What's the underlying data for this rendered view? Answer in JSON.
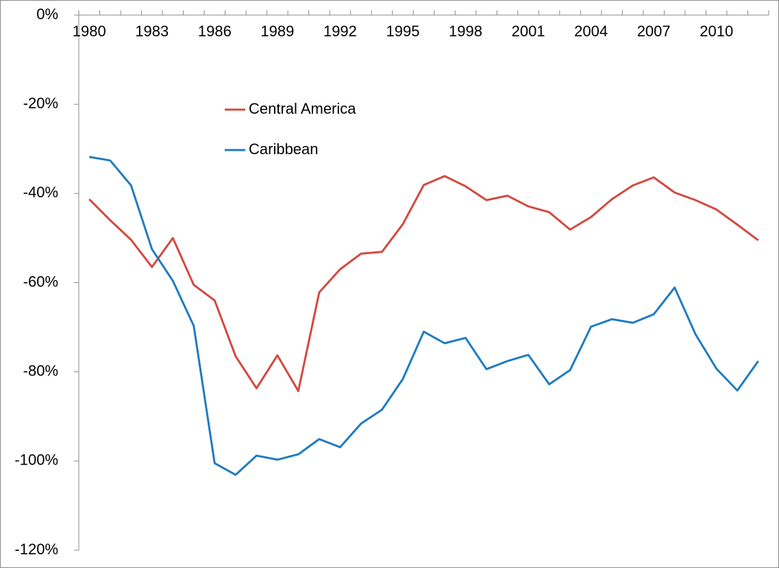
{
  "chart_data": {
    "type": "line",
    "categories": [
      1980,
      null,
      null,
      1983,
      null,
      null,
      1986,
      null,
      null,
      1989,
      null,
      null,
      1992,
      null,
      null,
      1995,
      null,
      null,
      1998,
      null,
      null,
      2001,
      null,
      null,
      2004,
      null,
      null,
      2007,
      null,
      null,
      2010,
      null,
      null
    ],
    "series": [
      {
        "name": "Central America",
        "color": "#d4483f",
        "values": [
          -41.3,
          -46,
          -50.4,
          -56.5,
          -50,
          -60.5,
          -64,
          -76.5,
          -83.7,
          -76.3,
          -84.3,
          -62.2,
          -57,
          -53.5,
          -53.1,
          -46.9,
          -38.1,
          -36.1,
          -38.4,
          -41.5,
          -40.5,
          -42.9,
          -44.2,
          -48.1,
          -45.3,
          -41.3,
          -38.2,
          -36.4,
          -39.8,
          -41.5,
          -43.6,
          -47,
          -50.5
        ]
      },
      {
        "name": "Caribbean",
        "color": "#1f7bc1",
        "values": [
          -31.8,
          -32.6,
          -38.2,
          -52.5,
          -59.6,
          -69.7,
          -100.5,
          -103.1,
          -98.8,
          -99.7,
          -98.5,
          -95.1,
          -96.9,
          -91.6,
          -88.5,
          -81.6,
          -71,
          -73.6,
          -72.4,
          -79.4,
          -77.6,
          -76.2,
          -82.8,
          -79.6,
          -69.9,
          -68.2,
          -69,
          -67.1,
          -61.1,
          -71.6,
          -79.3,
          -84.2,
          -77.6
        ]
      }
    ],
    "ylim": [
      -120,
      0
    ],
    "yticks": [
      {
        "value": 0,
        "label": "0%"
      },
      {
        "value": -20,
        "label": "-20%"
      },
      {
        "value": -40,
        "label": "-40%"
      },
      {
        "value": -60,
        "label": "-60%"
      },
      {
        "value": -80,
        "label": "-80%"
      },
      {
        "value": -100,
        "label": "-100%"
      },
      {
        "value": -120,
        "label": "-120%"
      }
    ],
    "grid": false
  }
}
